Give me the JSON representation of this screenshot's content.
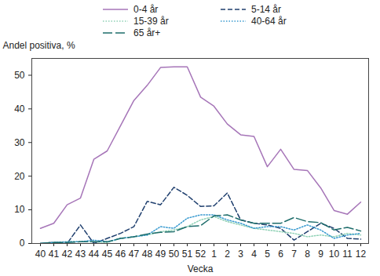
{
  "chart_data": {
    "type": "line",
    "x_label": "Vecka",
    "y_label": "Andel positiva, %",
    "categories": [
      "40",
      "41",
      "42",
      "43",
      "44",
      "45",
      "46",
      "47",
      "48",
      "49",
      "50",
      "51",
      "52",
      "1",
      "2",
      "3",
      "4",
      "5",
      "6",
      "7",
      "8",
      "9",
      "10",
      "11",
      "12"
    ],
    "ylim": [
      0,
      55
    ],
    "yticks": [
      0,
      10,
      20,
      30,
      40,
      50
    ],
    "legend": "top",
    "series": [
      {
        "name": "0-4 år",
        "color": "#a675b8",
        "line_style": "solid",
        "values": [
          4.5,
          6,
          11.5,
          13.5,
          25,
          27.5,
          35,
          42.5,
          47,
          52.3,
          52.5,
          52.5,
          43.5,
          40.8,
          35.5,
          32.3,
          31.8,
          22.8,
          28,
          22,
          21.7,
          16.5,
          9.8,
          8.7,
          12.3
        ]
      },
      {
        "name": "5-14 år",
        "color": "#1f3f6e",
        "line_style": "dashed",
        "values": [
          0,
          0.3,
          0,
          5.5,
          0,
          1.5,
          3,
          5,
          12.5,
          11.5,
          16.7,
          14.3,
          11,
          11.2,
          15,
          7,
          6,
          5.5,
          4.5,
          1,
          3.5,
          6,
          4.5,
          1.5,
          1.3
        ]
      },
      {
        "name": "15-39 år",
        "color": "#8fd1b5",
        "line_style": "dotted",
        "values": [
          0,
          0.3,
          0.5,
          0.5,
          0.5,
          0.3,
          1.5,
          2,
          2.5,
          3.5,
          4,
          5,
          7,
          8,
          6.5,
          5.5,
          4.5,
          4,
          3.5,
          3,
          2,
          2.5,
          2,
          3,
          2.5
        ]
      },
      {
        "name": "40-64 år",
        "color": "#3a9bd0",
        "line_style": "dotted",
        "values": [
          0,
          0.3,
          0.5,
          0.5,
          1,
          0.5,
          1.5,
          2,
          2.5,
          5,
          4.5,
          7.5,
          8.5,
          8.5,
          7,
          6,
          4.5,
          5,
          5,
          4,
          5.5,
          4,
          1.5,
          2.5,
          3
        ]
      },
      {
        "name": "65 år+",
        "color": "#1e6d6b",
        "line_style": "long-dashed",
        "values": [
          0,
          0.3,
          0.3,
          0.5,
          0.5,
          0.5,
          1.5,
          2,
          2.8,
          3.3,
          3.5,
          5,
          5.3,
          8.2,
          8.5,
          7,
          6,
          6,
          6,
          7.7,
          6.5,
          6.2,
          4,
          4.8,
          3.7
        ]
      }
    ]
  }
}
